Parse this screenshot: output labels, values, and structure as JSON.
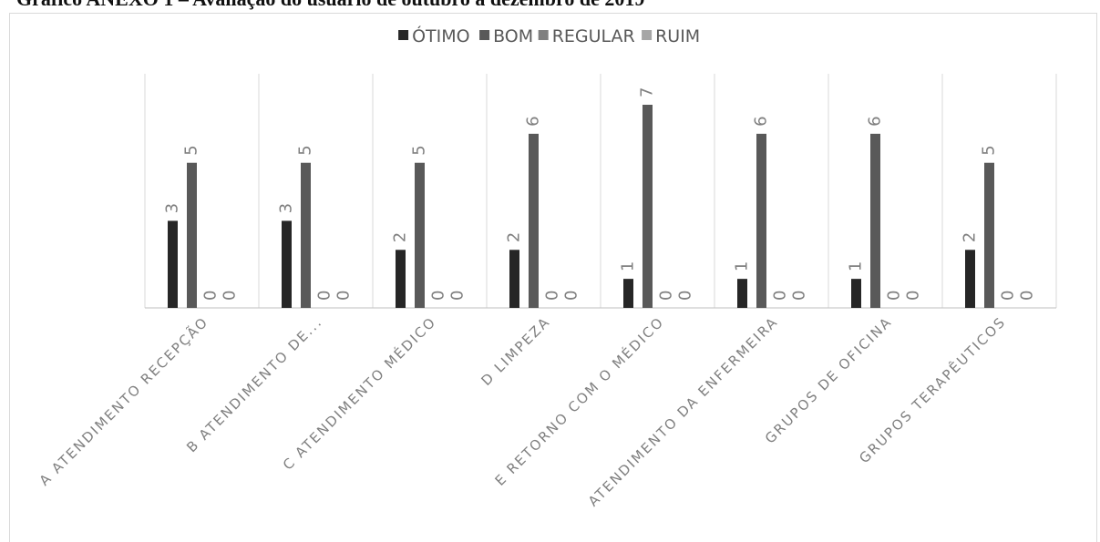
{
  "page_title": "Gráfico ANEXO 1 – Avaliação do usuário de outubro a dezembro de 2019",
  "chart_data": {
    "type": "bar",
    "title": "",
    "categories": [
      "A ATENDIMENTO RECEPÇÃO",
      "B ATENDIMENTO DE...",
      "C ATENDIMENTO MÉDICO",
      "D LIMPEZA",
      "E RETORNO COM O MÉDICO",
      "ATENDIMENTO DA ENFERMEIRA",
      "GRUPOS DE OFICINA",
      "GRUPOS TERAPÊUTICOS"
    ],
    "series": [
      {
        "name": "ÓTIMO",
        "color": "#262626",
        "values": [
          3,
          3,
          2,
          2,
          1,
          1,
          1,
          2
        ]
      },
      {
        "name": "BOM",
        "color": "#595959",
        "values": [
          5,
          5,
          5,
          6,
          7,
          6,
          6,
          5
        ]
      },
      {
        "name": "REGULAR",
        "color": "#7f7f7f",
        "values": [
          0,
          0,
          0,
          0,
          0,
          0,
          0,
          0
        ]
      },
      {
        "name": "RUIM",
        "color": "#a6a6a6",
        "values": [
          0,
          0,
          0,
          0,
          0,
          0,
          0,
          0
        ]
      }
    ],
    "ylim": [
      0,
      7
    ],
    "legend_position": "top",
    "grid": "vertical category separators",
    "data_labels": true
  }
}
